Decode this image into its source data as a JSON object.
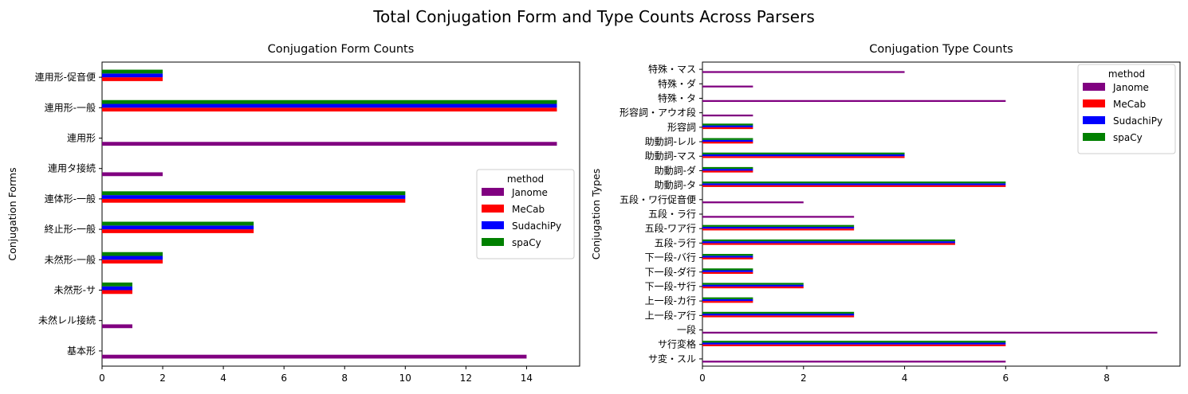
{
  "figure": {
    "suptitle": "Total Conjugation Form and Type Counts Across Parsers"
  },
  "legend": {
    "title": "method",
    "items": [
      "Janome",
      "MeCab",
      "SudachiPy",
      "spaCy"
    ]
  },
  "colors": {
    "Janome": "#800080",
    "MeCab": "#ff0000",
    "SudachiPy": "#0000ff",
    "spaCy": "#008000"
  },
  "chart_data": [
    {
      "type": "bar",
      "orientation": "horizontal",
      "title": "Conjugation Form Counts",
      "xlabel": "",
      "ylabel": "Conjugation Forms",
      "xlim": [
        0,
        15.75
      ],
      "xticks": [
        0,
        2,
        4,
        6,
        8,
        10,
        12,
        14
      ],
      "legend_position": "center-right",
      "grid": false,
      "categories": [
        "基本形",
        "未然レル接続",
        "未然形-サ",
        "未然形-一般",
        "終止形-一般",
        "連体形-一般",
        "連用タ接続",
        "連用形",
        "連用形-一般",
        "連用形-促音便"
      ],
      "series": [
        {
          "name": "Janome",
          "values": [
            14,
            1,
            0,
            0,
            0,
            0,
            2,
            15,
            0,
            0
          ]
        },
        {
          "name": "MeCab",
          "values": [
            0,
            0,
            1,
            2,
            5,
            10,
            0,
            0,
            15,
            2
          ]
        },
        {
          "name": "SudachiPy",
          "values": [
            0,
            0,
            1,
            2,
            5,
            10,
            0,
            0,
            15,
            2
          ]
        },
        {
          "name": "spaCy",
          "values": [
            0,
            0,
            1,
            2,
            5,
            10,
            0,
            0,
            15,
            2
          ]
        }
      ]
    },
    {
      "type": "bar",
      "orientation": "horizontal",
      "title": "Conjugation Type Counts",
      "xlabel": "",
      "ylabel": "Conjugation Types",
      "xlim": [
        0,
        9.45
      ],
      "xticks": [
        0,
        2,
        4,
        6,
        8
      ],
      "legend_position": "upper-right",
      "grid": false,
      "categories": [
        "サ変・スル",
        "サ行変格",
        "一段",
        "上一段-ア行",
        "上一段-カ行",
        "下一段-サ行",
        "下一段-ダ行",
        "下一段-バ行",
        "五段-ラ行",
        "五段-ワア行",
        "五段・ラ行",
        "五段・ワ行促音便",
        "助動詞-タ",
        "助動詞-ダ",
        "助動詞-マス",
        "助動詞-レル",
        "形容詞",
        "形容詞・アウオ段",
        "特殊・タ",
        "特殊・ダ",
        "特殊・マス"
      ],
      "series": [
        {
          "name": "Janome",
          "values": [
            6,
            0,
            9,
            0,
            0,
            0,
            0,
            0,
            0,
            0,
            3,
            2,
            0,
            0,
            0,
            0,
            0,
            1,
            6,
            1,
            4
          ]
        },
        {
          "name": "MeCab",
          "values": [
            0,
            6,
            0,
            3,
            1,
            2,
            1,
            1,
            5,
            3,
            0,
            0,
            6,
            1,
            4,
            1,
            1,
            0,
            0,
            0,
            0
          ]
        },
        {
          "name": "SudachiPy",
          "values": [
            0,
            6,
            0,
            3,
            1,
            2,
            1,
            1,
            5,
            3,
            0,
            0,
            6,
            1,
            4,
            1,
            1,
            0,
            0,
            0,
            0
          ]
        },
        {
          "name": "spaCy",
          "values": [
            0,
            6,
            0,
            3,
            1,
            2,
            1,
            1,
            5,
            3,
            0,
            0,
            6,
            1,
            4,
            1,
            1,
            0,
            0,
            0,
            0
          ]
        }
      ]
    }
  ]
}
